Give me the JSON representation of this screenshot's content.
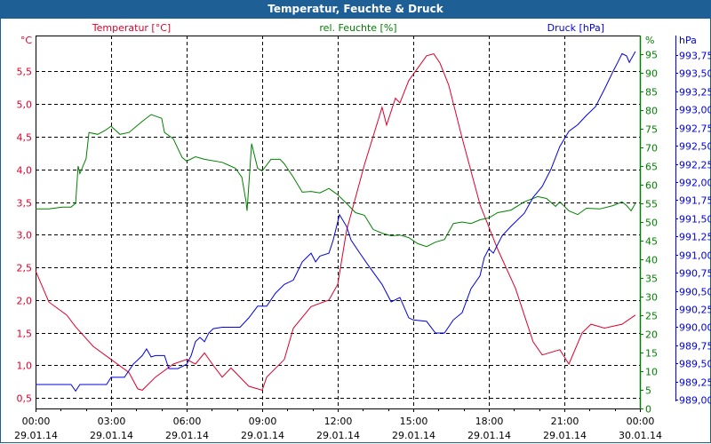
{
  "window": {
    "title": "Temperatur, Feuchte & Druck"
  },
  "colors": {
    "temperature": "#e0002a",
    "humidity": "#008000",
    "pressure": "#0000e0",
    "title_bar": "#1e5f96"
  },
  "chart_data": {
    "type": "line",
    "title": "Temperatur, Feuchte & Druck",
    "xlabel": "",
    "x_unit": "hours since 29.01.14 00:00",
    "xlim": [
      0,
      24
    ],
    "x_ticks": [
      {
        "time": "00:00",
        "date": "29.01.14",
        "h": 0
      },
      {
        "time": "03:00",
        "date": "29.01.14",
        "h": 3
      },
      {
        "time": "06:00",
        "date": "29.01.14",
        "h": 6
      },
      {
        "time": "09:00",
        "date": "29.01.14",
        "h": 9
      },
      {
        "time": "12:00",
        "date": "29.01.14",
        "h": 12
      },
      {
        "time": "15:00",
        "date": "29.01.14",
        "h": 15
      },
      {
        "time": "18:00",
        "date": "29.01.14",
        "h": 18
      },
      {
        "time": "21:00",
        "date": "29.01.14",
        "h": 21
      },
      {
        "time": "00:00",
        "date": "30.01.14",
        "h": 24
      }
    ],
    "grid": true,
    "axes": {
      "temperature": {
        "unit": "°C",
        "ylim": [
          0.34,
          6.05
        ],
        "ticks": [
          "0,5",
          "1,0",
          "1,5",
          "2,0",
          "2,5",
          "3,0",
          "3,5",
          "4,0",
          "4,5",
          "5,0",
          "5,5"
        ],
        "tick_values": [
          0.5,
          1,
          1.5,
          2,
          2.5,
          3,
          3.5,
          4,
          4.5,
          5,
          5.5
        ]
      },
      "humidity": {
        "unit": "%",
        "ylim": [
          0,
          100
        ],
        "ticks": [
          "0",
          "5",
          "10",
          "15",
          "20",
          "25",
          "30",
          "35",
          "40",
          "45",
          "50",
          "55",
          "60",
          "65",
          "70",
          "75",
          "80",
          "85",
          "90",
          "95"
        ],
        "tick_values": [
          0,
          5,
          10,
          15,
          20,
          25,
          30,
          35,
          40,
          45,
          50,
          55,
          60,
          65,
          70,
          75,
          80,
          85,
          90,
          95
        ]
      },
      "pressure": {
        "unit": "hPa",
        "ylim": [
          988.88,
          994.02
        ],
        "ticks": [
          "989,00",
          "989,25",
          "989,50",
          "989,75",
          "990,00",
          "990,25",
          "990,50",
          "990,75",
          "991,00",
          "991,25",
          "991,50",
          "991,75",
          "992,00",
          "992,25",
          "992,50",
          "992,75",
          "993,00",
          "993,25",
          "993,50",
          "993,75"
        ],
        "tick_values": [
          989,
          989.25,
          989.5,
          989.75,
          990,
          990.25,
          990.5,
          990.75,
          991,
          991.25,
          991.5,
          991.75,
          992,
          992.25,
          992.5,
          992.75,
          993,
          993.25,
          993.5,
          993.75
        ]
      }
    },
    "series": [
      {
        "name": "Temperatur [°C]",
        "axis": "temperature",
        "points": [
          [
            0,
            2.45
          ],
          [
            0.53,
            1.97
          ],
          [
            1.24,
            1.77
          ],
          [
            1.59,
            1.59
          ],
          [
            2.29,
            1.29
          ],
          [
            3.0,
            1.09
          ],
          [
            3.71,
            0.89
          ],
          [
            4.06,
            0.64
          ],
          [
            4.24,
            0.62
          ],
          [
            4.76,
            0.82
          ],
          [
            5.47,
            1.02
          ],
          [
            6.0,
            1.09
          ],
          [
            6.35,
            1.02
          ],
          [
            6.71,
            1.19
          ],
          [
            7.06,
            1.0
          ],
          [
            7.41,
            0.82
          ],
          [
            7.76,
            0.96
          ],
          [
            8.47,
            0.68
          ],
          [
            9.0,
            0.62
          ],
          [
            9.18,
            0.82
          ],
          [
            9.88,
            1.09
          ],
          [
            10.24,
            1.57
          ],
          [
            10.94,
            1.9
          ],
          [
            11.65,
            2.0
          ],
          [
            12.0,
            2.24
          ],
          [
            12.35,
            3.06
          ],
          [
            13.06,
            4.07
          ],
          [
            13.76,
            4.95
          ],
          [
            13.94,
            4.68
          ],
          [
            14.29,
            5.09
          ],
          [
            14.47,
            5.02
          ],
          [
            14.82,
            5.36
          ],
          [
            15.53,
            5.74
          ],
          [
            15.81,
            5.77
          ],
          [
            16.06,
            5.63
          ],
          [
            16.41,
            5.29
          ],
          [
            16.94,
            4.48
          ],
          [
            17.65,
            3.46
          ],
          [
            18.35,
            2.78
          ],
          [
            19.06,
            2.18
          ],
          [
            19.76,
            1.36
          ],
          [
            20.12,
            1.16
          ],
          [
            20.82,
            1.24
          ],
          [
            21.18,
            1.02
          ],
          [
            21.71,
            1.5
          ],
          [
            22.06,
            1.63
          ],
          [
            22.59,
            1.57
          ],
          [
            23.29,
            1.63
          ],
          [
            23.82,
            1.77
          ]
        ]
      },
      {
        "name": "rel. Feuchte [%]",
        "axis": "humidity",
        "points": [
          [
            0,
            53.5
          ],
          [
            0.53,
            53.5
          ],
          [
            1.06,
            54
          ],
          [
            1.41,
            54
          ],
          [
            1.59,
            55
          ],
          [
            1.69,
            65
          ],
          [
            1.76,
            63
          ],
          [
            2.01,
            67
          ],
          [
            2.12,
            74
          ],
          [
            2.47,
            73.5
          ],
          [
            2.75,
            74.5
          ],
          [
            3.0,
            75.7
          ],
          [
            3.35,
            73.5
          ],
          [
            3.71,
            74
          ],
          [
            4.24,
            77
          ],
          [
            4.59,
            78.8
          ],
          [
            5.01,
            77.8
          ],
          [
            5.12,
            74
          ],
          [
            5.47,
            72.3
          ],
          [
            5.82,
            67.3
          ],
          [
            6.0,
            66.3
          ],
          [
            6.35,
            67.5
          ],
          [
            6.71,
            66.8
          ],
          [
            7.41,
            66
          ],
          [
            7.94,
            64.4
          ],
          [
            8.19,
            62
          ],
          [
            8.36,
            55.4
          ],
          [
            8.4,
            53
          ],
          [
            8.58,
            71
          ],
          [
            8.82,
            64.4
          ],
          [
            9.0,
            63.7
          ],
          [
            9.35,
            66.8
          ],
          [
            9.71,
            66.8
          ],
          [
            9.88,
            65.6
          ],
          [
            10.24,
            62
          ],
          [
            10.59,
            58
          ],
          [
            10.94,
            58.2
          ],
          [
            11.29,
            57.8
          ],
          [
            11.65,
            59
          ],
          [
            12.0,
            57.3
          ],
          [
            12.35,
            55
          ],
          [
            12.71,
            52.5
          ],
          [
            13.06,
            51.8
          ],
          [
            13.41,
            48
          ],
          [
            13.76,
            47
          ],
          [
            14.12,
            46.3
          ],
          [
            14.47,
            46.5
          ],
          [
            14.82,
            45.8
          ],
          [
            15.18,
            44.2
          ],
          [
            15.53,
            43.4
          ],
          [
            15.88,
            44.6
          ],
          [
            16.24,
            45.3
          ],
          [
            16.59,
            49.6
          ],
          [
            16.94,
            50
          ],
          [
            17.29,
            49.6
          ],
          [
            17.65,
            50.6
          ],
          [
            18.0,
            51.1
          ],
          [
            18.35,
            52.5
          ],
          [
            18.88,
            53.2
          ],
          [
            19.41,
            55.4
          ],
          [
            19.94,
            56.8
          ],
          [
            20.29,
            56.3
          ],
          [
            20.65,
            54.2
          ],
          [
            20.82,
            55.4
          ],
          [
            21.18,
            53
          ],
          [
            21.53,
            52
          ],
          [
            21.88,
            53.7
          ],
          [
            22.41,
            53.5
          ],
          [
            22.94,
            54.4
          ],
          [
            23.29,
            55.4
          ],
          [
            23.47,
            54.4
          ],
          [
            23.65,
            53
          ],
          [
            23.82,
            55
          ]
        ]
      },
      {
        "name": "Druck [hPa]",
        "axis": "pressure",
        "points": [
          [
            0,
            989.21
          ],
          [
            1.41,
            989.21
          ],
          [
            1.59,
            989.12
          ],
          [
            1.76,
            989.21
          ],
          [
            2.82,
            989.21
          ],
          [
            3.0,
            989.31
          ],
          [
            3.53,
            989.31
          ],
          [
            3.88,
            989.49
          ],
          [
            4.24,
            989.61
          ],
          [
            4.41,
            989.7
          ],
          [
            4.59,
            989.59
          ],
          [
            4.76,
            989.61
          ],
          [
            5.12,
            989.61
          ],
          [
            5.29,
            989.43
          ],
          [
            5.65,
            989.43
          ],
          [
            6.0,
            989.49
          ],
          [
            6.18,
            989.61
          ],
          [
            6.35,
            989.8
          ],
          [
            6.53,
            989.86
          ],
          [
            6.71,
            989.8
          ],
          [
            6.88,
            989.92
          ],
          [
            7.06,
            989.98
          ],
          [
            7.41,
            990.0
          ],
          [
            8.12,
            990.0
          ],
          [
            8.47,
            990.13
          ],
          [
            8.82,
            990.29
          ],
          [
            9.18,
            990.29
          ],
          [
            9.53,
            990.47
          ],
          [
            9.88,
            990.59
          ],
          [
            10.24,
            990.65
          ],
          [
            10.59,
            990.9
          ],
          [
            10.94,
            991.02
          ],
          [
            11.12,
            990.9
          ],
          [
            11.29,
            990.98
          ],
          [
            11.65,
            991.02
          ],
          [
            11.82,
            991.2
          ],
          [
            12.07,
            991.55
          ],
          [
            12.35,
            991.39
          ],
          [
            12.53,
            991.2
          ],
          [
            12.88,
            991.02
          ],
          [
            13.24,
            990.84
          ],
          [
            13.76,
            990.59
          ],
          [
            14.12,
            990.35
          ],
          [
            14.47,
            990.41
          ],
          [
            14.82,
            990.13
          ],
          [
            15.0,
            990.1
          ],
          [
            15.53,
            990.08
          ],
          [
            15.88,
            989.92
          ],
          [
            16.24,
            989.92
          ],
          [
            16.59,
            990.1
          ],
          [
            16.94,
            990.2
          ],
          [
            17.29,
            990.53
          ],
          [
            17.65,
            990.71
          ],
          [
            17.82,
            990.96
          ],
          [
            18.0,
            991.08
          ],
          [
            18.18,
            991.02
          ],
          [
            18.35,
            991.14
          ],
          [
            18.53,
            991.26
          ],
          [
            18.88,
            991.39
          ],
          [
            19.41,
            991.57
          ],
          [
            19.76,
            991.79
          ],
          [
            20.12,
            991.94
          ],
          [
            20.47,
            992.18
          ],
          [
            20.82,
            992.49
          ],
          [
            21.18,
            992.7
          ],
          [
            21.53,
            992.79
          ],
          [
            21.88,
            992.92
          ],
          [
            22.24,
            993.04
          ],
          [
            22.59,
            993.28
          ],
          [
            22.94,
            993.53
          ],
          [
            23.12,
            993.65
          ],
          [
            23.29,
            993.77
          ],
          [
            23.47,
            993.74
          ],
          [
            23.58,
            993.65
          ],
          [
            23.82,
            993.8
          ]
        ]
      }
    ]
  }
}
